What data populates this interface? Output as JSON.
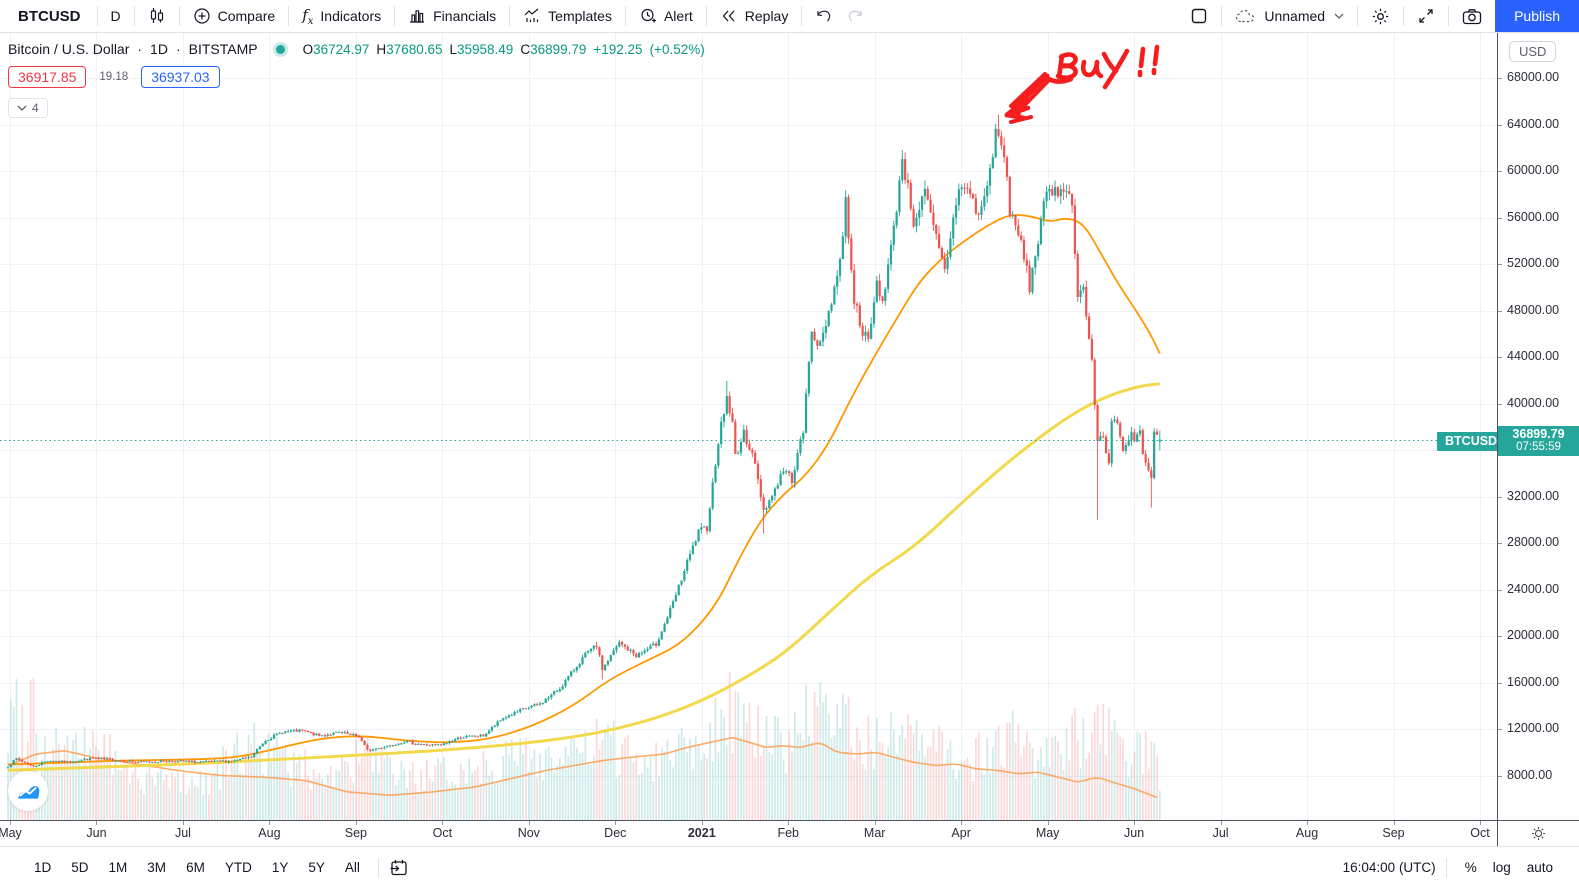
{
  "toolbar": {
    "symbol": "BTCUSD",
    "interval": "D",
    "compare": "Compare",
    "indicators": "Indicators",
    "financials": "Financials",
    "templates": "Templates",
    "alert": "Alert",
    "replay": "Replay",
    "layout_name": "Unnamed",
    "publish": "Publish"
  },
  "legend": {
    "title": "Bitcoin / U.S. Dollar",
    "interval": "1D",
    "exchange": "BITSTAMP",
    "sep1": "·",
    "sep2": "·",
    "o_label": "O",
    "o": "36724.97",
    "h_label": "H",
    "h": "37680.65",
    "l_label": "L",
    "l": "35958.49",
    "c_label": "C",
    "c": "36899.79",
    "change": "+192.25",
    "change_pct": "(+0.52%)",
    "sell_price": "36917.85",
    "spread": "19.18",
    "buy_price": "36937.03",
    "collapse_count": "4"
  },
  "price_scale": {
    "currency": "USD",
    "labels": [
      "68000.00",
      "64000.00",
      "60000.00",
      "56000.00",
      "52000.00",
      "48000.00",
      "44000.00",
      "40000.00",
      "32000.00",
      "28000.00",
      "24000.00",
      "20000.00",
      "16000.00",
      "12000.00",
      "8000.00"
    ],
    "last_symbol": "BTCUSD",
    "last_price": "36899.79",
    "countdown": "07:55:59"
  },
  "time_scale": {
    "labels": [
      "May",
      "Jun",
      "Jul",
      "Aug",
      "Sep",
      "Oct",
      "Nov",
      "Dec",
      "2021",
      "Feb",
      "Mar",
      "Apr",
      "May",
      "Jun",
      "Jul",
      "Aug",
      "Sep",
      "Oct"
    ]
  },
  "bottom_bar": {
    "ranges": [
      "1D",
      "5D",
      "1M",
      "3M",
      "6M",
      "YTD",
      "1Y",
      "5Y",
      "All"
    ],
    "clock": "16:04:00 (UTC)",
    "percent": "%",
    "log": "log",
    "auto": "auto"
  },
  "annotation": {
    "text": "BuY !!"
  },
  "colors": {
    "up": "#26a69a",
    "down": "#ef5350",
    "ohlc_text": "#089981",
    "sell_red": "#f23645",
    "buy_blue": "#2962ff",
    "ma_fast": "#ff9800",
    "ma_slow": "#f2d94b",
    "vol_ma": "#fb9e51",
    "grid": "#eef2f8",
    "badge": "#26a69a",
    "annotation_red": "#f51d1d"
  },
  "chart_data": {
    "type": "candlestick",
    "symbol": "BTCUSD",
    "timeframe": "1D",
    "x_unit": "days since 2020-05-01",
    "days": 408,
    "y_ticks": [
      8000,
      12000,
      16000,
      20000,
      24000,
      28000,
      32000,
      36000,
      40000,
      44000,
      48000,
      52000,
      56000,
      60000,
      64000,
      68000
    ],
    "y_range_top": 68000,
    "last_candle": {
      "open": 36724.97,
      "high": 37680.65,
      "low": 35958.49,
      "close": 36899.79
    },
    "close_path": [
      [
        0,
        8800
      ],
      [
        3,
        9450
      ],
      [
        9,
        8750
      ],
      [
        14,
        9300
      ],
      [
        21,
        9150
      ],
      [
        30,
        9500
      ],
      [
        38,
        9350
      ],
      [
        46,
        9150
      ],
      [
        56,
        9250
      ],
      [
        68,
        9150
      ],
      [
        80,
        9250
      ],
      [
        86,
        9600
      ],
      [
        88,
        10200
      ],
      [
        91,
        11050
      ],
      [
        97,
        11750
      ],
      [
        104,
        11850
      ],
      [
        110,
        11400
      ],
      [
        117,
        11700
      ],
      [
        124,
        11350
      ],
      [
        127,
        10150
      ],
      [
        132,
        10400
      ],
      [
        140,
        10950
      ],
      [
        147,
        10650
      ],
      [
        153,
        10600
      ],
      [
        160,
        11300
      ],
      [
        168,
        11420
      ],
      [
        175,
        12950
      ],
      [
        183,
        13780
      ],
      [
        188,
        14150
      ],
      [
        195,
        15500
      ],
      [
        204,
        18400
      ],
      [
        208,
        19150
      ],
      [
        210,
        17150
      ],
      [
        216,
        19400
      ],
      [
        222,
        18300
      ],
      [
        229,
        19300
      ],
      [
        235,
        22800
      ],
      [
        240,
        26300
      ],
      [
        244,
        28900
      ],
      [
        247,
        29350
      ],
      [
        249,
        33050
      ],
      [
        251,
        36850
      ],
      [
        254,
        40550
      ],
      [
        256,
        38200
      ],
      [
        257,
        35500
      ],
      [
        260,
        37350
      ],
      [
        263,
        35850
      ],
      [
        267,
        30850
      ],
      [
        270,
        32100
      ],
      [
        274,
        34300
      ],
      [
        277,
        33500
      ],
      [
        281,
        37650
      ],
      [
        284,
        46350
      ],
      [
        287,
        44850
      ],
      [
        290,
        47950
      ],
      [
        294,
        52100
      ],
      [
        296,
        57450
      ],
      [
        299,
        48900
      ],
      [
        302,
        46300
      ],
      [
        304,
        45150
      ],
      [
        307,
        50350
      ],
      [
        309,
        48800
      ],
      [
        313,
        54900
      ],
      [
        316,
        61200
      ],
      [
        320,
        55650
      ],
      [
        324,
        58050
      ],
      [
        328,
        54150
      ],
      [
        331,
        51350
      ],
      [
        334,
        55800
      ],
      [
        336,
        58750
      ],
      [
        340,
        58100
      ],
      [
        343,
        55950
      ],
      [
        347,
        59850
      ],
      [
        349,
        63550
      ],
      [
        350,
        62950
      ],
      [
        353,
        60050
      ],
      [
        354,
        56250
      ],
      [
        358,
        53850
      ],
      [
        361,
        50050
      ],
      [
        364,
        54050
      ],
      [
        366,
        57750
      ],
      [
        369,
        57850
      ],
      [
        374,
        58850
      ],
      [
        376,
        56700
      ],
      [
        378,
        49700
      ],
      [
        380,
        49850
      ],
      [
        383,
        43350
      ],
      [
        385,
        36750
      ],
      [
        387,
        37300
      ],
      [
        389,
        34750
      ],
      [
        390,
        38800
      ],
      [
        392,
        38350
      ],
      [
        394,
        35680
      ],
      [
        397,
        37300
      ],
      [
        398,
        36700
      ],
      [
        400,
        37600
      ],
      [
        401,
        35550
      ],
      [
        404,
        33400
      ],
      [
        405,
        37400
      ],
      [
        406,
        37000
      ],
      [
        407,
        36899.79
      ]
    ],
    "wick_lows": [
      [
        210,
        16250
      ],
      [
        267,
        28800
      ],
      [
        385,
        30000
      ],
      [
        404,
        31050
      ]
    ],
    "wick_highs": [
      [
        208,
        19500
      ],
      [
        254,
        41950
      ],
      [
        296,
        58350
      ],
      [
        316,
        61800
      ],
      [
        350,
        64850
      ]
    ],
    "ma_fast_orange": [
      [
        0,
        8950
      ],
      [
        20,
        9100
      ],
      [
        40,
        9300
      ],
      [
        60,
        9350
      ],
      [
        80,
        9500
      ],
      [
        95,
        10300
      ],
      [
        110,
        11200
      ],
      [
        125,
        11450
      ],
      [
        140,
        11000
      ],
      [
        155,
        10800
      ],
      [
        170,
        11100
      ],
      [
        185,
        12200
      ],
      [
        200,
        14000
      ],
      [
        212,
        16200
      ],
      [
        225,
        17800
      ],
      [
        238,
        19300
      ],
      [
        250,
        22500
      ],
      [
        258,
        26500
      ],
      [
        266,
        30000
      ],
      [
        274,
        32200
      ],
      [
        282,
        33800
      ],
      [
        290,
        36500
      ],
      [
        298,
        40500
      ],
      [
        306,
        44000
      ],
      [
        314,
        47300
      ],
      [
        322,
        50500
      ],
      [
        330,
        52500
      ],
      [
        338,
        54000
      ],
      [
        346,
        55300
      ],
      [
        354,
        56300
      ],
      [
        362,
        56100
      ],
      [
        368,
        55600
      ],
      [
        374,
        56000
      ],
      [
        380,
        55500
      ],
      [
        386,
        53000
      ],
      [
        392,
        50400
      ],
      [
        398,
        48200
      ],
      [
        403,
        46300
      ],
      [
        407,
        44300
      ]
    ],
    "ma_slow_yellow": [
      [
        0,
        8450
      ],
      [
        30,
        8700
      ],
      [
        60,
        8950
      ],
      [
        90,
        9300
      ],
      [
        120,
        9700
      ],
      [
        150,
        10100
      ],
      [
        180,
        10700
      ],
      [
        200,
        11300
      ],
      [
        215,
        12000
      ],
      [
        230,
        13000
      ],
      [
        245,
        14400
      ],
      [
        260,
        16300
      ],
      [
        275,
        18600
      ],
      [
        290,
        22000
      ],
      [
        305,
        25300
      ],
      [
        320,
        27600
      ],
      [
        335,
        31000
      ],
      [
        350,
        34300
      ],
      [
        365,
        37200
      ],
      [
        378,
        39400
      ],
      [
        390,
        40800
      ],
      [
        400,
        41500
      ],
      [
        407,
        41700
      ]
    ],
    "volume_relative": [
      [
        0,
        0.55
      ],
      [
        3,
        0.8
      ],
      [
        6,
        0.5
      ],
      [
        8,
        1.0
      ],
      [
        11,
        0.45
      ],
      [
        18,
        0.5
      ],
      [
        25,
        0.4
      ],
      [
        32,
        0.55
      ],
      [
        40,
        0.3
      ],
      [
        55,
        0.26
      ],
      [
        70,
        0.25
      ],
      [
        86,
        0.5
      ],
      [
        91,
        0.45
      ],
      [
        100,
        0.35
      ],
      [
        115,
        0.3
      ],
      [
        127,
        0.42
      ],
      [
        135,
        0.3
      ],
      [
        150,
        0.28
      ],
      [
        162,
        0.33
      ],
      [
        175,
        0.4
      ],
      [
        185,
        0.42
      ],
      [
        196,
        0.4
      ],
      [
        205,
        0.45
      ],
      [
        210,
        0.5
      ],
      [
        216,
        0.45
      ],
      [
        228,
        0.4
      ],
      [
        237,
        0.5
      ],
      [
        246,
        0.55
      ],
      [
        250,
        0.62
      ],
      [
        254,
        0.78
      ],
      [
        257,
        0.7
      ],
      [
        262,
        0.55
      ],
      [
        267,
        0.6
      ],
      [
        272,
        0.5
      ],
      [
        277,
        0.52
      ],
      [
        284,
        0.72
      ],
      [
        290,
        0.6
      ],
      [
        297,
        0.65
      ],
      [
        300,
        0.58
      ],
      [
        304,
        0.5
      ],
      [
        310,
        0.52
      ],
      [
        317,
        0.55
      ],
      [
        322,
        0.45
      ],
      [
        328,
        0.48
      ],
      [
        335,
        0.42
      ],
      [
        340,
        0.4
      ],
      [
        347,
        0.45
      ],
      [
        350,
        0.5
      ],
      [
        354,
        0.55
      ],
      [
        360,
        0.45
      ],
      [
        366,
        0.4
      ],
      [
        372,
        0.42
      ],
      [
        378,
        0.55
      ],
      [
        383,
        0.62
      ],
      [
        385,
        0.85
      ],
      [
        387,
        0.62
      ],
      [
        390,
        0.5
      ],
      [
        394,
        0.42
      ],
      [
        398,
        0.4
      ],
      [
        401,
        0.45
      ],
      [
        404,
        0.5
      ],
      [
        405,
        0.42
      ],
      [
        407,
        0.3
      ]
    ],
    "volume_ma_relative": [
      [
        0,
        0.33
      ],
      [
        10,
        0.4
      ],
      [
        20,
        0.42
      ],
      [
        30,
        0.38
      ],
      [
        45,
        0.34
      ],
      [
        60,
        0.3
      ],
      [
        75,
        0.27
      ],
      [
        90,
        0.26
      ],
      [
        105,
        0.24
      ],
      [
        120,
        0.17
      ],
      [
        135,
        0.15
      ],
      [
        150,
        0.17
      ],
      [
        165,
        0.2
      ],
      [
        180,
        0.26
      ],
      [
        190,
        0.3
      ],
      [
        200,
        0.33
      ],
      [
        210,
        0.36
      ],
      [
        220,
        0.38
      ],
      [
        232,
        0.4
      ],
      [
        240,
        0.44
      ],
      [
        248,
        0.47
      ],
      [
        256,
        0.5
      ],
      [
        262,
        0.47
      ],
      [
        268,
        0.44
      ],
      [
        274,
        0.45
      ],
      [
        280,
        0.44
      ],
      [
        287,
        0.47
      ],
      [
        293,
        0.41
      ],
      [
        300,
        0.4
      ],
      [
        307,
        0.41
      ],
      [
        313,
        0.38
      ],
      [
        320,
        0.35
      ],
      [
        328,
        0.33
      ],
      [
        335,
        0.34
      ],
      [
        342,
        0.31
      ],
      [
        350,
        0.3
      ],
      [
        357,
        0.28
      ],
      [
        364,
        0.29
      ],
      [
        371,
        0.26
      ],
      [
        378,
        0.23
      ],
      [
        385,
        0.26
      ],
      [
        392,
        0.22
      ],
      [
        398,
        0.19
      ],
      [
        404,
        0.15
      ],
      [
        407,
        0.13
      ]
    ]
  }
}
